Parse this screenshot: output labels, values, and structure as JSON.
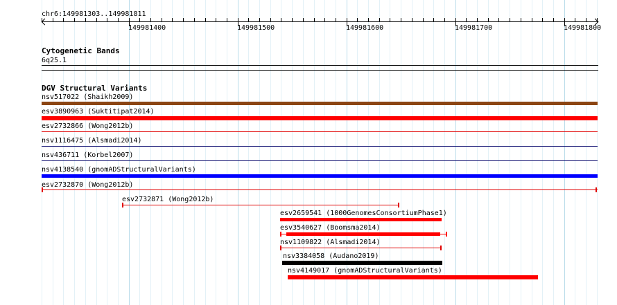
{
  "ruler": {
    "location": "chr6:149981303..149981811",
    "tick_labels": [
      "149981400",
      "149981500",
      "149981600",
      "149981700",
      "149981800"
    ]
  },
  "cytoband_track": {
    "title": "Cytogenetic Bands",
    "band": "6q25.1"
  },
  "dgv_track": {
    "title": "DGV Structural Variants",
    "features": [
      {
        "label": "nsv517022 (Shaikh2009)",
        "color": "#8b4513",
        "style": "thick"
      },
      {
        "label": "esv3890963 (Suktitipat2014)",
        "color": "#ff0000",
        "style": "thick"
      },
      {
        "label": "esv2732866 (Wong2012b)",
        "color": "#e00000",
        "style": "line"
      },
      {
        "label": "nsv1116475 (Alsmadi2014)",
        "color": "#0b0b6e",
        "style": "line"
      },
      {
        "label": "nsv436711 (Korbel2007)",
        "color": "#0b0b6e",
        "style": "line"
      },
      {
        "label": "nsv4138540 (gnomADStructuralVariants)",
        "color": "#0000ff",
        "style": "thick"
      },
      {
        "label": "esv2732870 (Wong2012b)",
        "color": "#e00000",
        "style": "bracket"
      },
      {
        "label": "esv2732871 (Wong2012b)",
        "color": "#e00000",
        "style": "bracket"
      },
      {
        "label": "esv2659541 (1000GenomesConsortiumPhase1)",
        "color": "#ff0000",
        "style": "thick"
      },
      {
        "label": "esv3540627 (Boomsma2014)",
        "color": "#ff0000",
        "style": "thick-bracket"
      },
      {
        "label": "nsv1109822 (Alsmadi2014)",
        "color": "#e00000",
        "style": "bracket"
      },
      {
        "label": "nsv3384058 (Audano2019)",
        "color": "#000000",
        "style": "thick"
      },
      {
        "label": "nsv4149017 (gnomADStructuralVariants)",
        "color": "#ff0000",
        "style": "thick"
      }
    ]
  }
}
